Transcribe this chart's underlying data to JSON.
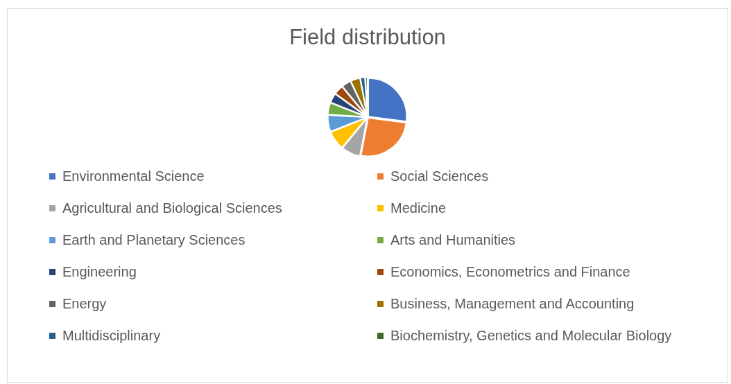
{
  "chart_data": {
    "type": "pie",
    "title": "Field distribution",
    "categories": [
      "Environmental Science",
      "Social Sciences",
      "Agricultural and Biological Sciences",
      "Medicine",
      "Earth and Planetary Sciences",
      "Arts and Humanities",
      "Engineering",
      "Economics, Econometrics and Finance",
      "Energy",
      "Business, Management and Accounting",
      "Multidisciplinary",
      "Biochemistry, Genetics and Molecular Biology"
    ],
    "values": [
      27,
      26,
      8,
      8,
      7,
      5,
      4,
      4,
      4,
      4,
      2,
      1
    ],
    "colors": [
      "#4472c4",
      "#ed7d31",
      "#a5a5a5",
      "#ffc000",
      "#5b9bd5",
      "#70ad47",
      "#264478",
      "#9e480e",
      "#636363",
      "#997300",
      "#255e91",
      "#43682b"
    ],
    "legend": "bottom"
  }
}
